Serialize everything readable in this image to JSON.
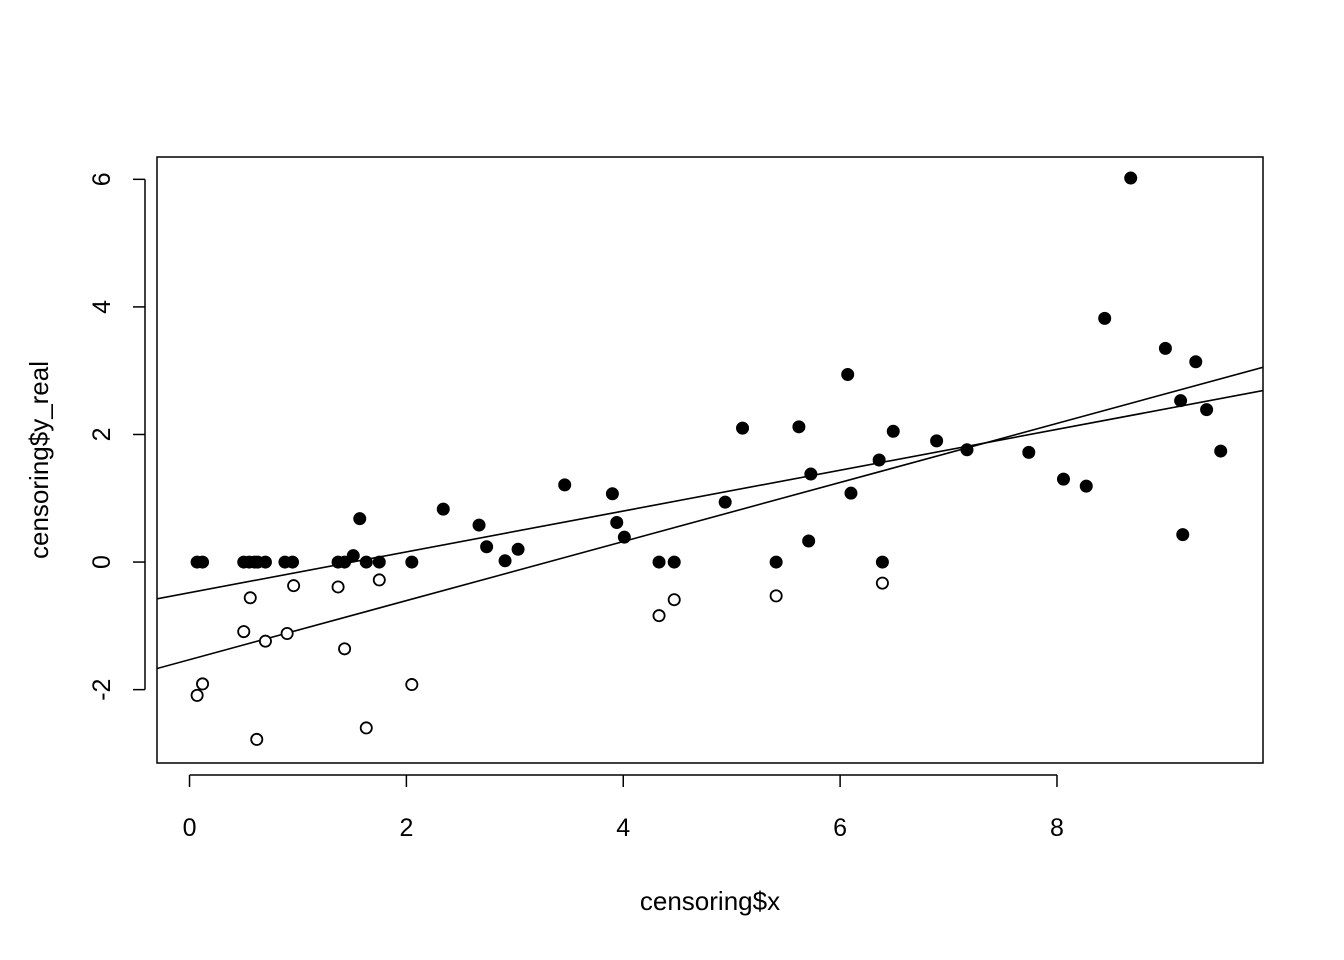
{
  "chart_data": {
    "type": "scatter",
    "title": "",
    "xlabel": "censoring$x",
    "ylabel": "censoring$y_real",
    "xlim": [
      -0.3,
      9.9
    ],
    "ylim": [
      -3.15,
      6.35
    ],
    "xticks": [
      0,
      2,
      4,
      6,
      8
    ],
    "yticks": [
      -2,
      0,
      2,
      4,
      6
    ],
    "xtick_labels": [
      "0",
      "2",
      "4",
      "6",
      "8"
    ],
    "ytick_labels": [
      "-2",
      "0",
      "2",
      "4",
      "6"
    ],
    "grid": false,
    "legend": "none",
    "series": [
      {
        "marker": "filled-circle",
        "color": "#000000",
        "x": [
          0.07,
          0.12,
          0.5,
          0.55,
          0.6,
          0.63,
          0.7,
          0.88,
          0.95,
          1.37,
          1.43,
          1.51,
          1.57,
          1.63,
          1.75,
          2.05,
          2.34,
          2.67,
          2.74,
          2.91,
          3.03,
          3.46,
          3.9,
          3.94,
          4.01,
          4.33,
          4.47,
          4.94,
          5.1,
          5.41,
          5.62,
          5.71,
          5.73,
          6.07,
          6.1,
          6.36,
          6.39,
          6.49,
          6.89,
          7.17,
          7.74,
          8.06,
          8.27,
          8.44,
          8.68,
          9.0,
          9.14,
          9.16,
          9.28,
          9.38,
          9.51
        ],
        "y": [
          0.0,
          0.0,
          0.0,
          0.0,
          0.0,
          0.0,
          0.0,
          0.0,
          0.0,
          0.0,
          0.0,
          0.1,
          0.68,
          0.0,
          0.0,
          0.0,
          0.83,
          0.58,
          0.24,
          0.02,
          0.2,
          1.21,
          1.07,
          0.62,
          0.39,
          0.0,
          0.0,
          0.94,
          2.1,
          0.0,
          2.12,
          0.33,
          1.38,
          2.94,
          1.08,
          1.6,
          0.0,
          2.05,
          1.9,
          1.76,
          1.72,
          1.3,
          1.19,
          3.82,
          6.02,
          3.35,
          2.53,
          0.43,
          3.14,
          2.39,
          1.74
        ]
      },
      {
        "marker": "open-circle",
        "color": "#000000",
        "x": [
          0.07,
          0.12,
          0.5,
          0.56,
          0.62,
          0.7,
          0.9,
          0.96,
          1.37,
          1.43,
          1.63,
          1.75,
          2.05,
          4.33,
          4.47,
          5.41,
          6.39
        ],
        "y": [
          -2.09,
          -1.91,
          -1.09,
          -0.56,
          -2.78,
          -1.24,
          -1.12,
          -0.37,
          -0.39,
          -1.36,
          -2.6,
          -0.28,
          -1.92,
          -0.84,
          -0.59,
          -0.53,
          -0.33
        ]
      }
    ],
    "lines": [
      {
        "intercept": -0.48,
        "slope": 0.32
      },
      {
        "intercept": -1.53,
        "slope": 0.463
      }
    ]
  }
}
